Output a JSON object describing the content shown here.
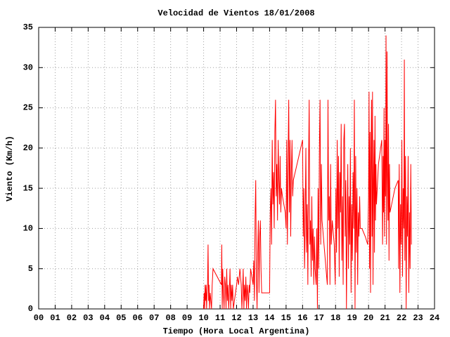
{
  "chart_data": {
    "type": "line",
    "title": "Velocidad de Vientos 18/01/2008",
    "x_label": "Tiempo (Hora Local Argentina)",
    "y_label": "Viento (Km/h)",
    "xlim": [
      0,
      24
    ],
    "ylim": [
      0,
      35
    ],
    "xticks": [
      {
        "value": 0,
        "label": "00"
      },
      {
        "value": 1,
        "label": "01"
      },
      {
        "value": 2,
        "label": "02"
      },
      {
        "value": 3,
        "label": "03"
      },
      {
        "value": 4,
        "label": "04"
      },
      {
        "value": 5,
        "label": "05"
      },
      {
        "value": 6,
        "label": "06"
      },
      {
        "value": 7,
        "label": "07"
      },
      {
        "value": 8,
        "label": "08"
      },
      {
        "value": 9,
        "label": "09"
      },
      10,
      11,
      12,
      13,
      14,
      15,
      16,
      17,
      18,
      19,
      20,
      21,
      22,
      23,
      24
    ],
    "yticks": [
      0,
      5,
      10,
      15,
      20,
      25,
      30,
      35
    ],
    "grid": true,
    "x": [
      10.0,
      10.03,
      10.06,
      10.09,
      10.12,
      10.15,
      10.18,
      10.21,
      10.24,
      10.27,
      10.3,
      10.33,
      10.36,
      10.4,
      10.44,
      10.48,
      10.52,
      10.57,
      11.08,
      11.1,
      11.13,
      11.16,
      11.2,
      11.24,
      11.28,
      11.32,
      11.36,
      11.4,
      11.44,
      11.48,
      11.52,
      11.56,
      11.6,
      11.64,
      11.68,
      11.72,
      11.76,
      11.8,
      12.0,
      12.05,
      12.12,
      12.2,
      12.28,
      12.32,
      12.36,
      12.4,
      12.44,
      12.48,
      12.52,
      12.56,
      12.6,
      12.64,
      12.68,
      12.72,
      12.76,
      12.8,
      12.85,
      13.0,
      13.04,
      13.08,
      13.12,
      13.16,
      13.2,
      13.24,
      13.28,
      13.32,
      13.36,
      13.4,
      13.44,
      13.48,
      13.52,
      14.0,
      14.04,
      14.08,
      14.12,
      14.16,
      14.2,
      14.24,
      14.28,
      14.32,
      14.36,
      14.4,
      14.44,
      14.48,
      14.52,
      14.56,
      14.6,
      14.64,
      14.68,
      14.72,
      14.78,
      14.95,
      15.0,
      15.04,
      15.08,
      15.12,
      15.16,
      15.2,
      15.24,
      15.28,
      15.32,
      15.36,
      15.4,
      15.44,
      16.0,
      16.04,
      16.08,
      16.12,
      16.16,
      16.2,
      16.24,
      16.28,
      16.32,
      16.36,
      16.4,
      16.44,
      16.48,
      16.52,
      16.56,
      16.6,
      16.64,
      16.68,
      16.72,
      16.76,
      16.82,
      16.86,
      16.9,
      16.94,
      16.98,
      17.02,
      17.06,
      17.1,
      17.14,
      17.18,
      17.26,
      17.34,
      17.42,
      17.5,
      17.54,
      17.58,
      17.62,
      17.66,
      17.7,
      17.74,
      17.8,
      17.92,
      17.98,
      18.02,
      18.06,
      18.1,
      18.14,
      18.18,
      18.22,
      18.26,
      18.3,
      18.34,
      18.38,
      18.42,
      18.46,
      18.5,
      18.54,
      18.58,
      18.62,
      18.66,
      18.7,
      18.74,
      18.78,
      18.82,
      18.86,
      18.9,
      18.94,
      18.98,
      19.02,
      19.06,
      19.1,
      19.14,
      19.18,
      19.22,
      19.26,
      19.3,
      19.34,
      19.38,
      19.42,
      19.46,
      19.5,
      19.6,
      19.8,
      19.95,
      20.0,
      20.03,
      20.06,
      20.09,
      20.12,
      20.15,
      20.18,
      20.21,
      20.24,
      20.27,
      20.3,
      20.33,
      20.36,
      20.39,
      20.42,
      20.45,
      20.48,
      20.6,
      20.8,
      20.85,
      20.88,
      20.91,
      20.94,
      20.97,
      21.0,
      21.03,
      21.06,
      21.09,
      21.12,
      21.15,
      21.18,
      21.21,
      21.24,
      21.27,
      21.3,
      21.4,
      21.6,
      21.8,
      21.82,
      21.86,
      21.9,
      21.94,
      21.98,
      22.02,
      22.06,
      22.1,
      22.14,
      22.17,
      22.2,
      22.24,
      22.28,
      22.32,
      22.36,
      22.4,
      22.44,
      22.48,
      22.52,
      22.56,
      22.6
    ],
    "series": [
      {
        "color": "#ff0000",
        "values": [
          0,
          2,
          0,
          3,
          1,
          3,
          0,
          2,
          3,
          8,
          1,
          3,
          0,
          2,
          1,
          0,
          3,
          5,
          3,
          8,
          0,
          5,
          2,
          0,
          4,
          3,
          0,
          5,
          1,
          3,
          0,
          2,
          5,
          0,
          3,
          1,
          3,
          0,
          3,
          4,
          3,
          5,
          3,
          0,
          2,
          5,
          0,
          3,
          1,
          4,
          0,
          3,
          2,
          0,
          3,
          2,
          5,
          3,
          6,
          1,
          11,
          16,
          4,
          0,
          7,
          11,
          2,
          9,
          11,
          5,
          2,
          2,
          12,
          15,
          8,
          21,
          13,
          17,
          10,
          22,
          26,
          14,
          18,
          11,
          21,
          16,
          13,
          19,
          12,
          15,
          14,
          12,
          10,
          21,
          8,
          18,
          26,
          12,
          21,
          9,
          17,
          21,
          14,
          16,
          21,
          9,
          15,
          5,
          11,
          20,
          7,
          13,
          3,
          17,
          26,
          8,
          11,
          4,
          14,
          6,
          10,
          3,
          9,
          5,
          3,
          10,
          0,
          15,
          5,
          20,
          26,
          8,
          18,
          11,
          9,
          7,
          5,
          3,
          26,
          11,
          14,
          3,
          18,
          8,
          11,
          8,
          3,
          15,
          7,
          21,
          10,
          19,
          4,
          17,
          12,
          23,
          6,
          14,
          3,
          21,
          23,
          9,
          16,
          0,
          11,
          18,
          5,
          14,
          8,
          20,
          2,
          13,
          6,
          17,
          10,
          26,
          0,
          19,
          7,
          15,
          3,
          12,
          9,
          14,
          10,
          10,
          9,
          8,
          14,
          27,
          5,
          22,
          2,
          18,
          26,
          9,
          27,
          3,
          16,
          21,
          7,
          24,
          11,
          18,
          13,
          18,
          21,
          8,
          19,
          12,
          25,
          9,
          21,
          14,
          34,
          8,
          32,
          17,
          11,
          23,
          6,
          18,
          12,
          13,
          15,
          16,
          5,
          18,
          2,
          13,
          8,
          21,
          4,
          15,
          10,
          31,
          6,
          19,
          0,
          14,
          9,
          19,
          2,
          12,
          5,
          18,
          8
        ]
      }
    ]
  }
}
